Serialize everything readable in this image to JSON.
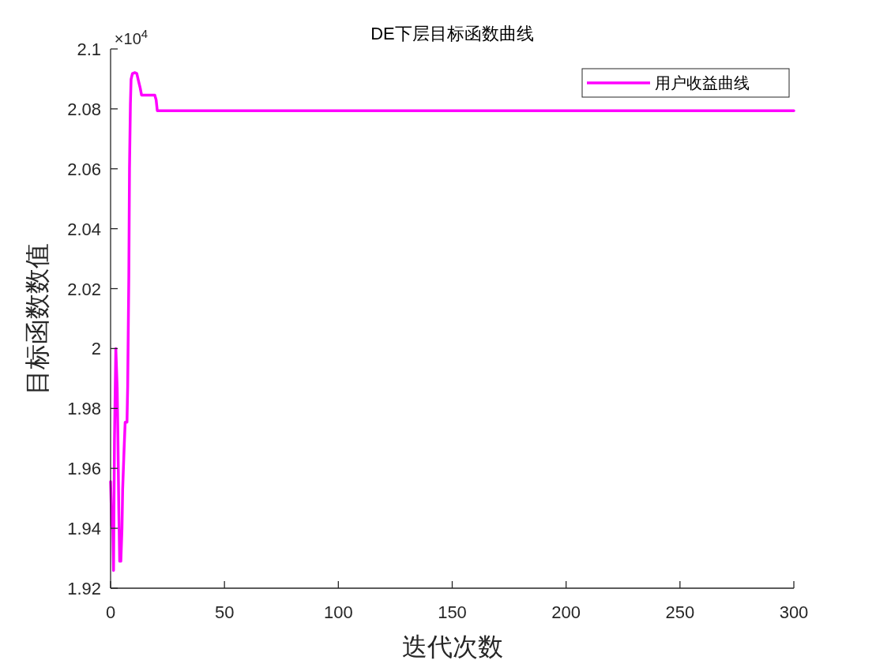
{
  "chart_data": {
    "type": "line",
    "title": "DE下层目标函数曲线",
    "xlabel": "迭代次数",
    "ylabel": "目标函数数值",
    "annotations": [
      "×10$^{4}$"
    ],
    "xlim": [
      0,
      300
    ],
    "xticks": [
      0,
      50,
      100,
      150,
      200,
      250,
      300
    ],
    "ylim": [
      1.92,
      2.1
    ],
    "yticks": [
      1.92,
      1.94,
      1.96,
      1.98,
      2,
      2.02,
      2.04,
      2.06,
      2.08,
      2.1
    ],
    "grid": false,
    "legend": "top right",
    "marker": "none",
    "line_style": "solid",
    "series": [
      {
        "name": "用户收益曲线",
        "color": "#ff00ff",
        "x": [
          0,
          0.5,
          1,
          1.3,
          1.7,
          2.3,
          2.9,
          3.2,
          3.6,
          4.0,
          4.5,
          5.0,
          5.3,
          5.9,
          6.4,
          7.2,
          7.5,
          8.0,
          8.3,
          8.7,
          9.0,
          9.6,
          10.7,
          11.5,
          12.2,
          13.0,
          13.6,
          19.4,
          20.0,
          20.5,
          300
        ],
        "values": [
          1.9556,
          1.941,
          1.9395,
          1.9259,
          1.9693,
          2.0,
          1.9868,
          1.9715,
          1.9465,
          1.929,
          1.929,
          1.9399,
          1.953,
          1.9658,
          1.9754,
          1.9754,
          1.9873,
          2.0237,
          2.0601,
          2.0816,
          2.0899,
          2.0918,
          2.0921,
          2.0918,
          2.0895,
          2.087,
          2.0846,
          2.0846,
          2.083,
          2.0794,
          2.0794
        ]
      }
    ]
  }
}
